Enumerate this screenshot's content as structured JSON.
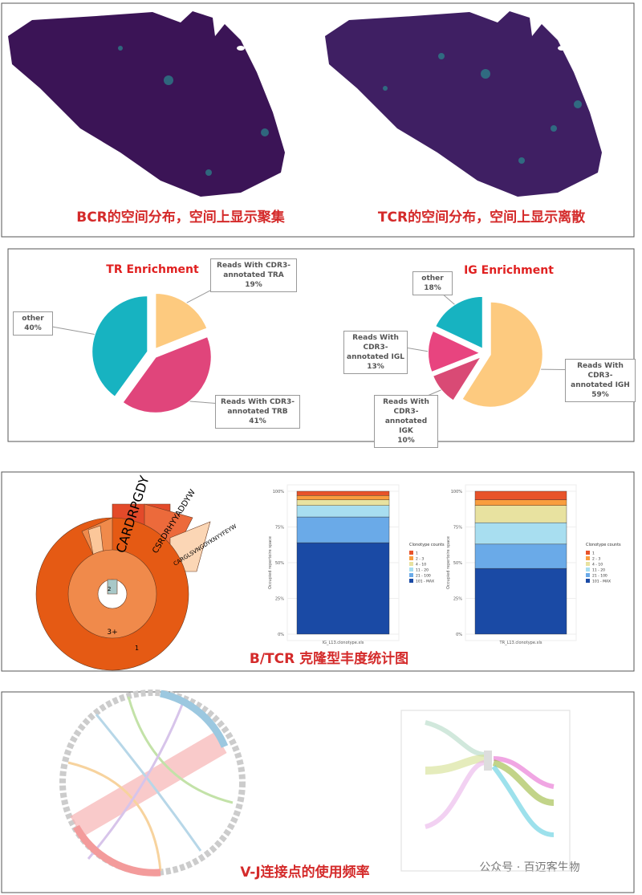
{
  "captions": [
    "BCR的空间分布，空间上显示聚集",
    "TCR的空间分布，空间上显示离散",
    "B/TCR 克隆型丰度统计图",
    "V-J连接点的使用频率"
  ],
  "sunburst_labels": [
    "CARDRPGDY",
    "CSRDRHYYADDYW",
    "CARGLSVNGDYKNYYFEYW",
    "3+",
    "1",
    "2"
  ],
  "watermark": "公众号 · 百迈客生物",
  "chart_data": [
    {
      "type": "pie",
      "title": "TR Enrichment",
      "categories": [
        "Reads With CDR3-annotated TRA",
        "Reads With CDR3-annotated TRB",
        "other"
      ],
      "values": [
        19,
        41,
        40
      ],
      "value_labels": [
        "19%",
        "41%",
        "40%"
      ],
      "colors": [
        "#fdca7f",
        "#e0457b",
        "#17b3c1"
      ]
    },
    {
      "type": "pie",
      "title": "IG Enrichment",
      "categories": [
        "Reads With CDR3-annotated IGH",
        "Reads With CDR3-annotated IGK",
        "Reads With CDR3-annotated IGL",
        "other"
      ],
      "values": [
        59,
        10,
        13,
        18
      ],
      "value_labels": [
        "59%",
        "10%",
        "13%",
        "18%"
      ],
      "colors": [
        "#fdca7f",
        "#d94a75",
        "#e8447f",
        "#17b3c1"
      ]
    },
    {
      "type": "stacked_bar",
      "categories": [
        "IG_L13.clonotype.xls"
      ],
      "y_label": "Occupied repertoire space",
      "legend_title": "Clonotype counts",
      "ylim": [
        0,
        100
      ],
      "yticks": [
        {
          "value": 0,
          "label": "0%"
        },
        {
          "value": 25,
          "label": "25%"
        },
        {
          "value": 50,
          "label": "50%"
        },
        {
          "value": 75,
          "label": "75%"
        },
        {
          "value": 100,
          "label": "100%"
        }
      ],
      "series": [
        {
          "name": "1",
          "color": "#e8532a",
          "values": [
            3
          ]
        },
        {
          "name": "2 - 3",
          "color": "#f99d3e",
          "values": [
            3
          ]
        },
        {
          "name": "4 - 10",
          "color": "#e8e2a0",
          "values": [
            4
          ]
        },
        {
          "name": "11 - 20",
          "color": "#a8def0",
          "values": [
            8
          ]
        },
        {
          "name": "21 - 100",
          "color": "#6aaae8",
          "values": [
            18
          ]
        },
        {
          "name": "101 - MAX",
          "color": "#1a4aa5",
          "values": [
            64
          ]
        }
      ]
    },
    {
      "type": "stacked_bar",
      "categories": [
        "TR_L13.clonotype.xls"
      ],
      "y_label": "Occupied repertoire space",
      "legend_title": "Clonotype counts",
      "ylim": [
        0,
        100
      ],
      "yticks": [
        {
          "value": 0,
          "label": "0%"
        },
        {
          "value": 25,
          "label": "25%"
        },
        {
          "value": 50,
          "label": "50%"
        },
        {
          "value": 75,
          "label": "75%"
        },
        {
          "value": 100,
          "label": "100%"
        }
      ],
      "series": [
        {
          "name": "1",
          "color": "#e8532a",
          "values": [
            6
          ]
        },
        {
          "name": "2 - 3",
          "color": "#f99d3e",
          "values": [
            4
          ]
        },
        {
          "name": "4 - 10",
          "color": "#e8e2a0",
          "values": [
            12
          ]
        },
        {
          "name": "11 - 20",
          "color": "#a8def0",
          "values": [
            15
          ]
        },
        {
          "name": "21 - 100",
          "color": "#6aaae8",
          "values": [
            17
          ]
        },
        {
          "name": "101 - MAX",
          "color": "#1a4aa5",
          "values": [
            46
          ]
        }
      ]
    }
  ]
}
